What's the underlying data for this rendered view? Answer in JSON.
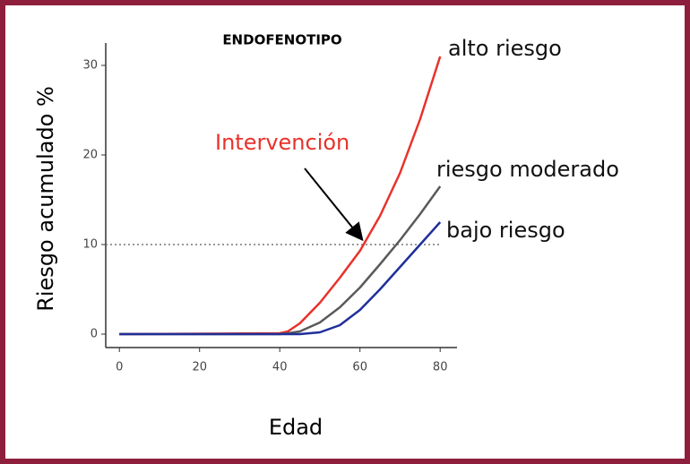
{
  "chart_data": {
    "type": "line",
    "title": "ENDOFENOTIPO",
    "x_label": "Edad",
    "y_label": "Riesgo acumulado %",
    "x": [
      0,
      40,
      42,
      45,
      50,
      55,
      60,
      65,
      70,
      75,
      80
    ],
    "series": [
      {
        "name": "alto riesgo",
        "color": "#e8322b",
        "values": [
          0,
          0.1,
          0.3,
          1.2,
          3.5,
          6.3,
          9.3,
          13.2,
          18,
          24,
          31
        ]
      },
      {
        "name": "riesgo moderado",
        "color": "#5a5a5a",
        "values": [
          0,
          0,
          0.1,
          0.3,
          1.3,
          3,
          5.2,
          7.8,
          10.5,
          13.4,
          16.5
        ]
      },
      {
        "name": "bajo riesgo",
        "color": "#1f2f9a",
        "values": [
          0,
          0,
          0,
          0,
          0.2,
          1,
          2.7,
          5,
          7.5,
          10,
          12.5
        ]
      }
    ],
    "xlim": [
      -3.4,
      84.2
    ],
    "ylim": [
      -1.5,
      32.5
    ],
    "xticks": [
      0,
      20,
      40,
      60,
      80
    ],
    "yticks": [
      0,
      10,
      20,
      30
    ],
    "reference_line": 10,
    "annotations": [
      {
        "text": "Intervención",
        "color": "#e8322b"
      }
    ]
  }
}
